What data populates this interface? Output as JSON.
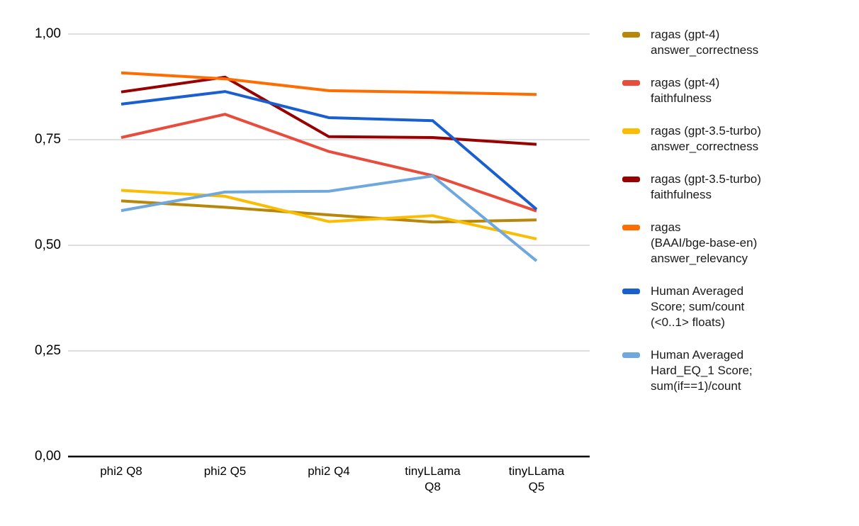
{
  "chart_data": {
    "type": "line",
    "title": "",
    "xlabel": "",
    "ylabel": "",
    "grid": true,
    "legend_position": "right",
    "ylim": [
      0,
      1
    ],
    "categories": [
      "phi2 Q8",
      "phi2 Q5",
      "phi2 Q4",
      "tinyLLama Q8",
      "tinyLLama Q5"
    ],
    "x_tick_lines": [
      [
        "phi2 Q8"
      ],
      [
        "phi2 Q5"
      ],
      [
        "phi2 Q4"
      ],
      [
        "tinyLLama",
        "Q8"
      ],
      [
        "tinyLLama",
        "Q5"
      ]
    ],
    "y_ticks": [
      {
        "label": "0,00",
        "value": 0
      },
      {
        "label": "0,25",
        "value": 0.25
      },
      {
        "label": "0,50",
        "value": 0.5
      },
      {
        "label": "0,75",
        "value": 0.75
      },
      {
        "label": "1,00",
        "value": 1
      }
    ],
    "axis_color": "#000000",
    "gridline_color": "#cccccc",
    "series": [
      {
        "name": "ragas (gpt-4) answer_correctness",
        "label_lines": [
          "ragas (gpt-4)",
          "answer_correctness"
        ],
        "color": "#b8860b",
        "values": [
          0.605,
          0.59,
          0.572,
          0.555,
          0.56
        ]
      },
      {
        "name": "ragas (gpt-4) faithfulness",
        "label_lines": [
          "ragas (gpt-4)",
          "faithfulness"
        ],
        "color": "#e74c3c",
        "values": [
          0.755,
          0.81,
          0.722,
          0.665,
          0.581
        ]
      },
      {
        "name": "ragas (gpt-3.5-turbo) answer_correctness",
        "label_lines": [
          "ragas (gpt-3.5-turbo)",
          "answer_correctness"
        ],
        "color": "#fbbc04",
        "values": [
          0.63,
          0.616,
          0.556,
          0.57,
          0.515
        ]
      },
      {
        "name": "ragas (gpt-3.5-turbo) faithfulness",
        "label_lines": [
          "ragas (gpt-3.5-turbo)",
          "faithfulness"
        ],
        "color": "#990000",
        "values": [
          0.863,
          0.898,
          0.757,
          0.755,
          0.739
        ]
      },
      {
        "name": "ragas (BAAI/bge-base-en) answer_relevancy",
        "label_lines": [
          "ragas",
          "(BAAI/bge-base-en)",
          "answer_relevancy"
        ],
        "color": "#ff6d01",
        "values": [
          0.908,
          0.894,
          0.866,
          0.862,
          0.857
        ]
      },
      {
        "name": "Human Averaged Score; sum/count (<0..1> floats)",
        "label_lines": [
          "Human Averaged",
          "Score; sum/count",
          "(<0..1> floats)"
        ],
        "color": "#1a5fd0",
        "values": [
          0.834,
          0.864,
          0.802,
          0.795,
          0.585
        ]
      },
      {
        "name": "Human Averaged Hard_EQ_1 Score; sum(if==1)/count",
        "label_lines": [
          "Human Averaged",
          "Hard_EQ_1 Score;",
          "sum(if==1)/count"
        ],
        "color": "#6fa8dc",
        "values": [
          0.582,
          0.626,
          0.628,
          0.664,
          0.463
        ]
      }
    ]
  }
}
